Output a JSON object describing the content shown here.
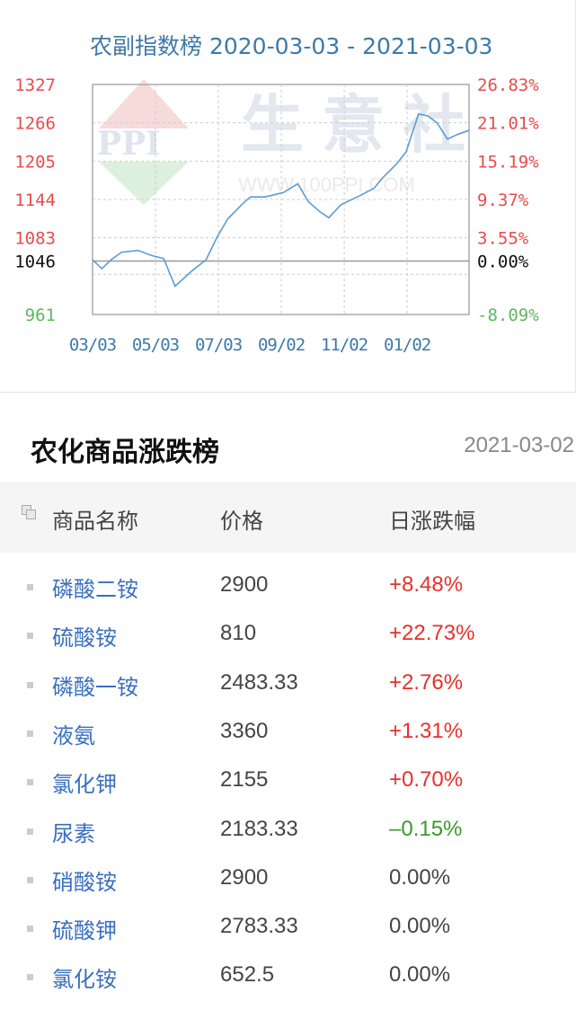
{
  "chart_data": {
    "type": "line",
    "title": "农副指数榜 2020-03-03 - 2021-03-03",
    "xlim": [
      "2020-03-03",
      "2021-03-03"
    ],
    "ylim": [
      961,
      1327
    ],
    "baseline": 1046,
    "grid": true,
    "x_ticks": [
      {
        "date": "2020-03-03",
        "label": "03/03"
      },
      {
        "date": "2020-05-03",
        "label": "05/03"
      },
      {
        "date": "2020-07-03",
        "label": "07/03"
      },
      {
        "date": "2020-09-02",
        "label": "09/02"
      },
      {
        "date": "2020-11-02",
        "label": "11/02"
      },
      {
        "date": "2021-01-02",
        "label": "01/02"
      }
    ],
    "y_ticks_left": [
      {
        "value": 1327,
        "label": "1327",
        "color": "#e84c4c"
      },
      {
        "value": 1266,
        "label": "1266",
        "color": "#e84c4c"
      },
      {
        "value": 1205,
        "label": "1205",
        "color": "#e84c4c"
      },
      {
        "value": 1144,
        "label": "1144",
        "color": "#e84c4c"
      },
      {
        "value": 1083,
        "label": "1083",
        "color": "#e84c4c"
      },
      {
        "value": 1046,
        "label": "1046",
        "color": "#111111"
      },
      {
        "value": 961,
        "label": "961",
        "color": "#5cb85c"
      }
    ],
    "y_ticks_right": [
      "26.83%",
      "21.01%",
      "15.19%",
      "9.37%",
      "3.55%",
      "0.00%",
      "-8.09%"
    ],
    "line_color": "#5b9bd5",
    "x": [
      "2020-03-03",
      "2020-03-12",
      "2020-03-21",
      "2020-03-31",
      "2020-04-16",
      "2020-04-29",
      "2020-05-11",
      "2020-05-22",
      "2020-06-07",
      "2020-06-21",
      "2020-07-02",
      "2020-07-12",
      "2020-07-27",
      "2020-08-03",
      "2020-08-17",
      "2020-09-04",
      "2020-09-18",
      "2020-09-28",
      "2020-10-09",
      "2020-10-18",
      "2020-10-30",
      "2020-11-17",
      "2020-12-01",
      "2020-12-09",
      "2020-12-23",
      "2021-01-01",
      "2021-01-13",
      "2021-01-22",
      "2021-01-31",
      "2021-02-10",
      "2021-02-19",
      "2021-03-03"
    ],
    "values": [
      1048,
      1034,
      1048,
      1060,
      1063,
      1055,
      1050,
      1006,
      1030,
      1048,
      1085,
      1113,
      1138,
      1148,
      1148,
      1155,
      1169,
      1141,
      1125,
      1115,
      1136,
      1150,
      1162,
      1178,
      1201,
      1220,
      1280,
      1277,
      1266,
      1240,
      1247,
      1254
    ],
    "watermark": {
      "logo": "PPI",
      "brand": "生意社",
      "url": "WWW.100PPI.COM"
    }
  },
  "section": {
    "title": "农化商品涨跌榜",
    "date": "2021-03-02"
  },
  "table": {
    "headers": [
      "商品名称",
      "价格",
      "日涨跌幅"
    ],
    "colors": {
      "up": "#e8302a",
      "down": "#3a9a2a",
      "flat": "#444444"
    },
    "rows": [
      {
        "name": "磷酸二铵",
        "price": "2900",
        "change": "+8.48%",
        "dir": "up"
      },
      {
        "name": "硫酸铵",
        "price": "810",
        "change": "+22.73%",
        "dir": "up"
      },
      {
        "name": "磷酸一铵",
        "price": "2483.33",
        "change": "+2.76%",
        "dir": "up"
      },
      {
        "name": "液氨",
        "price": "3360",
        "change": "+1.31%",
        "dir": "up"
      },
      {
        "name": "氯化钾",
        "price": "2155",
        "change": "+0.70%",
        "dir": "up"
      },
      {
        "name": "尿素",
        "price": "2183.33",
        "change": "–0.15%",
        "dir": "down"
      },
      {
        "name": "硝酸铵",
        "price": "2900",
        "change": "0.00%",
        "dir": "flat"
      },
      {
        "name": "硫酸钾",
        "price": "2783.33",
        "change": "0.00%",
        "dir": "flat"
      },
      {
        "name": "氯化铵",
        "price": "652.5",
        "change": "0.00%",
        "dir": "flat"
      }
    ]
  }
}
